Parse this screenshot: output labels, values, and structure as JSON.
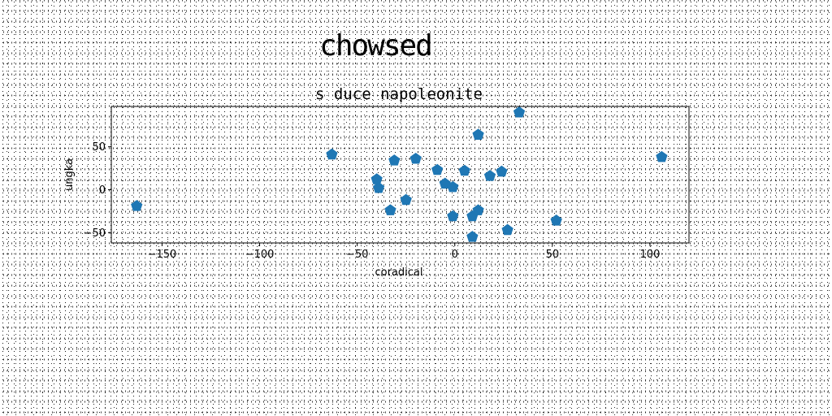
{
  "chart_data": {
    "type": "scatter",
    "suptitle": "chowsed",
    "title": "s duce napoleonite",
    "xlabel": "coradical",
    "ylabel": "ungka",
    "xlim": [
      -176,
      120
    ],
    "ylim": [
      -62,
      97
    ],
    "xticks": [
      -150,
      -100,
      -50,
      0,
      50,
      100
    ],
    "yticks": [
      -50,
      0,
      50
    ],
    "marker": "pentagon",
    "color": "#1f77b4",
    "grid": false,
    "points": [
      {
        "x": -163,
        "y": -19
      },
      {
        "x": -63,
        "y": 41
      },
      {
        "x": -40,
        "y": 12
      },
      {
        "x": -39,
        "y": 2
      },
      {
        "x": -31,
        "y": 34
      },
      {
        "x": -33,
        "y": -24
      },
      {
        "x": -25,
        "y": -12
      },
      {
        "x": -20,
        "y": 36
      },
      {
        "x": -9,
        "y": 23
      },
      {
        "x": -5,
        "y": 7
      },
      {
        "x": -1,
        "y": 3
      },
      {
        "x": -1,
        "y": -31
      },
      {
        "x": 5,
        "y": 22
      },
      {
        "x": 9,
        "y": -31
      },
      {
        "x": 9,
        "y": -55
      },
      {
        "x": 12,
        "y": -24
      },
      {
        "x": 12,
        "y": 64
      },
      {
        "x": 18,
        "y": 16
      },
      {
        "x": 24,
        "y": 21
      },
      {
        "x": 27,
        "y": -47
      },
      {
        "x": 33,
        "y": 90
      },
      {
        "x": 52,
        "y": -36
      },
      {
        "x": 106,
        "y": 38
      }
    ]
  }
}
